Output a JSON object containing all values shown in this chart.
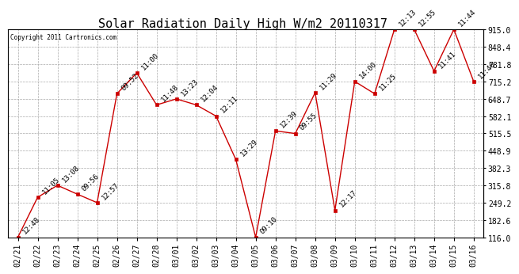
{
  "title": "Solar Radiation Daily High W/m2 20110317",
  "copyright": "Copyright 2011 Cartronics.com",
  "line_color": "#cc0000",
  "marker_color": "#cc0000",
  "bg_color": "#ffffff",
  "plot_bg_color": "#ffffff",
  "grid_color": "#aaaaaa",
  "text_color": "#000000",
  "ylabel_right_values": [
    116.0,
    182.6,
    249.2,
    315.8,
    382.3,
    448.9,
    515.5,
    582.1,
    648.7,
    715.2,
    781.8,
    848.4,
    915.0
  ],
  "ymin": 116.0,
  "ymax": 915.0,
  "dates": [
    "02/21",
    "02/22",
    "02/23",
    "02/24",
    "02/25",
    "02/26",
    "02/27",
    "02/28",
    "03/01",
    "03/02",
    "03/03",
    "03/04",
    "03/05",
    "03/06",
    "03/07",
    "03/08",
    "03/09",
    "03/10",
    "03/11",
    "03/12",
    "03/13",
    "03/14",
    "03/15",
    "03/16"
  ],
  "values": [
    116.0,
    270.0,
    315.8,
    282.0,
    249.2,
    668.0,
    748.0,
    625.0,
    648.0,
    625.0,
    582.0,
    415.0,
    116.0,
    525.0,
    515.0,
    672.0,
    220.0,
    715.2,
    668.0,
    915.0,
    915.0,
    755.0,
    915.0,
    715.2
  ],
  "times": [
    "12:48",
    "11:05",
    "13:08",
    "09:56",
    "12:57",
    "09:52",
    "11:00",
    "11:48",
    "13:23",
    "12:04",
    "12:11",
    "13:29",
    "09:10",
    "12:39",
    "09:55",
    "11:29",
    "12:17",
    "14:00",
    "11:25",
    "12:13",
    "12:55",
    "11:41",
    "11:44",
    "11:46"
  ],
  "title_fontsize": 11,
  "tick_fontsize": 7,
  "annotation_fontsize": 6.5
}
